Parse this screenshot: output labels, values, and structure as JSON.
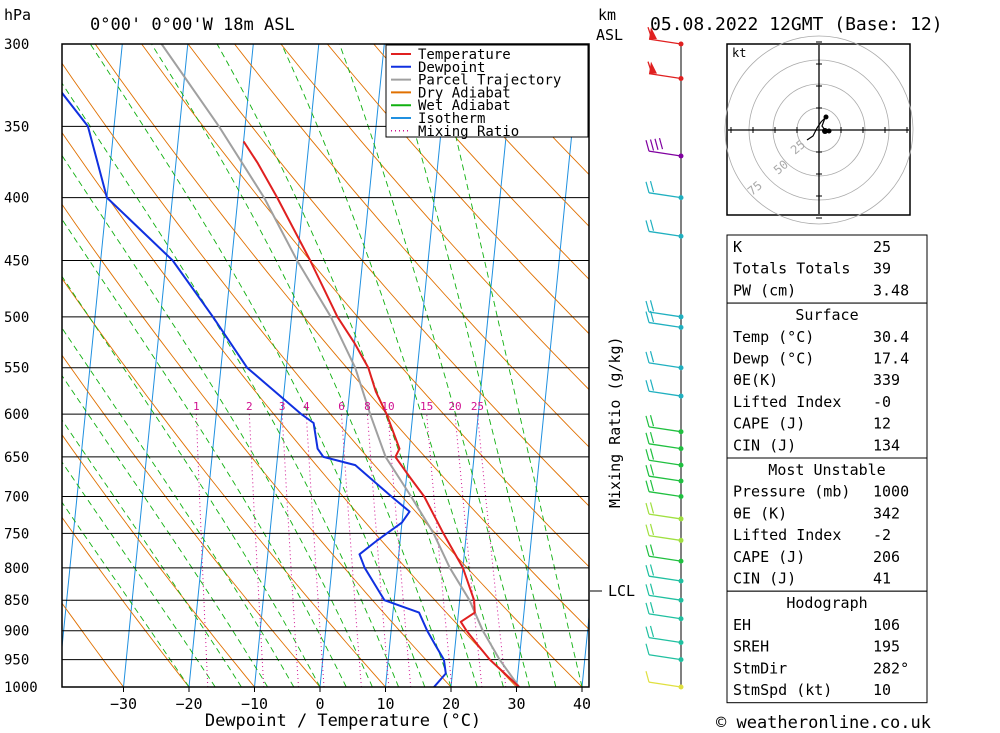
{
  "header": {
    "left_unit": "hPa",
    "location": "0°00' 0°00'W 18m ASL",
    "right_unit_top": "km",
    "right_unit_bottom": "ASL",
    "datetime": "05.08.2022 12GMT (Base: 12)"
  },
  "chart_data": {
    "type": "line",
    "subtype": "skew-t log-p",
    "xlabel": "Dewpoint / Temperature (°C)",
    "ylabel": "",
    "x_ticks": [
      -30,
      -20,
      -10,
      0,
      10,
      20,
      30,
      40
    ],
    "pressure_levels": [
      300,
      350,
      400,
      450,
      500,
      550,
      600,
      650,
      700,
      750,
      800,
      850,
      900,
      950,
      1000
    ],
    "mixing_ratio_label": "Mixing Ratio (g/kg)",
    "mixing_ratio_values": [
      "1",
      "2",
      "3",
      "4",
      "6",
      "8",
      "10",
      "15",
      "20",
      "25"
    ],
    "lcl_label": "LCL",
    "lcl_pressure": 840,
    "legend": [
      {
        "name": "Temperature",
        "color": "#e02020",
        "style": "solid"
      },
      {
        "name": "Dewpoint",
        "color": "#1030e0",
        "style": "solid"
      },
      {
        "name": "Parcel Trajectory",
        "color": "#a0a0a0",
        "style": "solid"
      },
      {
        "name": "Dry Adiabat",
        "color": "#e07000",
        "style": "solid"
      },
      {
        "name": "Wet Adiabat",
        "color": "#10b010",
        "style": "solid"
      },
      {
        "name": "Isotherm",
        "color": "#2090e0",
        "style": "solid"
      },
      {
        "name": "Mixing Ratio",
        "color": "#d01090",
        "style": "dotted"
      }
    ],
    "series": [
      {
        "name": "Temperature",
        "points": [
          [
            1000,
            30.4
          ],
          [
            975,
            28
          ],
          [
            950,
            25.5
          ],
          [
            925,
            23.5
          ],
          [
            900,
            21.5
          ],
          [
            885,
            20.5
          ],
          [
            870,
            22.5
          ],
          [
            850,
            22.2
          ],
          [
            800,
            20
          ],
          [
            750,
            16.5
          ],
          [
            700,
            13
          ],
          [
            675,
            10.5
          ],
          [
            650,
            8
          ],
          [
            640,
            8.5
          ],
          [
            600,
            6
          ],
          [
            575,
            4
          ],
          [
            550,
            2.5
          ],
          [
            525,
            0
          ],
          [
            500,
            -3
          ],
          [
            450,
            -8
          ],
          [
            400,
            -14
          ],
          [
            375,
            -17.5
          ],
          [
            360,
            -20
          ]
        ]
      },
      {
        "name": "Dewpoint",
        "points": [
          [
            1000,
            17.4
          ],
          [
            975,
            19
          ],
          [
            950,
            18.5
          ],
          [
            925,
            17
          ],
          [
            900,
            15.5
          ],
          [
            870,
            14
          ],
          [
            850,
            8.5
          ],
          [
            800,
            5
          ],
          [
            780,
            4
          ],
          [
            760,
            6.5
          ],
          [
            735,
            10
          ],
          [
            720,
            11
          ],
          [
            700,
            8
          ],
          [
            660,
            2
          ],
          [
            650,
            -3
          ],
          [
            640,
            -4
          ],
          [
            610,
            -5
          ],
          [
            600,
            -7
          ],
          [
            550,
            -16
          ],
          [
            500,
            -22
          ],
          [
            450,
            -29
          ],
          [
            400,
            -40
          ],
          [
            350,
            -44
          ],
          [
            300,
            -55
          ]
        ]
      },
      {
        "name": "Parcel Trajectory",
        "points": [
          [
            1000,
            30.4
          ],
          [
            950,
            27
          ],
          [
            900,
            24
          ],
          [
            850,
            21.5
          ],
          [
            800,
            18
          ],
          [
            750,
            15
          ],
          [
            700,
            11
          ],
          [
            650,
            6.5
          ],
          [
            600,
            3.5
          ],
          [
            550,
            0.5
          ],
          [
            500,
            -4
          ],
          [
            450,
            -10
          ],
          [
            400,
            -16
          ],
          [
            350,
            -24
          ],
          [
            300,
            -34
          ]
        ]
      }
    ],
    "wind_barbs": [
      {
        "p": 300,
        "color": "#e02020",
        "flags": 1
      },
      {
        "p": 320,
        "color": "#e02020",
        "flags": 1
      },
      {
        "p": 370,
        "color": "#8000a0",
        "barbs": 4
      },
      {
        "p": 400,
        "color": "#20b0c0",
        "barbs": 2
      },
      {
        "p": 430,
        "color": "#20b0c0",
        "barbs": 2
      },
      {
        "p": 500,
        "color": "#20b0c0",
        "barbs": 2
      },
      {
        "p": 510,
        "color": "#20b0c0",
        "barbs": 2
      },
      {
        "p": 550,
        "color": "#20b0c0",
        "barbs": 2
      },
      {
        "p": 580,
        "color": "#20b0c0",
        "barbs": 2
      },
      {
        "p": 620,
        "color": "#20c040",
        "barbs": 2
      },
      {
        "p": 640,
        "color": "#20c040",
        "barbs": 2
      },
      {
        "p": 660,
        "color": "#20c040",
        "barbs": 2
      },
      {
        "p": 680,
        "color": "#20c040",
        "barbs": 2
      },
      {
        "p": 700,
        "color": "#20c040",
        "barbs": 2
      },
      {
        "p": 730,
        "color": "#a0e040",
        "barbs": 2
      },
      {
        "p": 760,
        "color": "#a0e040",
        "barbs": 2
      },
      {
        "p": 790,
        "color": "#20c040",
        "barbs": 2
      },
      {
        "p": 820,
        "color": "#20c0a0",
        "barbs": 2
      },
      {
        "p": 850,
        "color": "#20c0a0",
        "barbs": 2
      },
      {
        "p": 880,
        "color": "#20c0a0",
        "barbs": 2
      },
      {
        "p": 920,
        "color": "#20c0a0",
        "barbs": 2
      },
      {
        "p": 950,
        "color": "#20c0a0",
        "barbs": 1
      },
      {
        "p": 1000,
        "color": "#e0e040",
        "barbs": 1
      }
    ],
    "hodograph": {
      "unit": "kt",
      "rings": [
        "25",
        "50",
        "75"
      ]
    }
  },
  "indices": {
    "top": [
      {
        "label": "K",
        "value": "25"
      },
      {
        "label": "Totals Totals",
        "value": "39"
      },
      {
        "label": "PW (cm)",
        "value": "3.48"
      }
    ],
    "surface": {
      "title": "Surface",
      "rows": [
        {
          "label": "Temp (°C)",
          "value": "30.4"
        },
        {
          "label": "Dewp (°C)",
          "value": "17.4"
        },
        {
          "label": "θE(K)",
          "value": "339"
        },
        {
          "label": "Lifted Index",
          "value": "-0"
        },
        {
          "label": "CAPE (J)",
          "value": "12"
        },
        {
          "label": "CIN (J)",
          "value": "134"
        }
      ]
    },
    "most_unstable": {
      "title": "Most Unstable",
      "rows": [
        {
          "label": "Pressure (mb)",
          "value": "1000"
        },
        {
          "label": "θE (K)",
          "value": "342"
        },
        {
          "label": "Lifted Index",
          "value": "-2"
        },
        {
          "label": "CAPE (J)",
          "value": "206"
        },
        {
          "label": "CIN (J)",
          "value": "41"
        }
      ]
    },
    "hodograph_params": {
      "title": "Hodograph",
      "rows": [
        {
          "label": "EH",
          "value": "106"
        },
        {
          "label": "SREH",
          "value": "195"
        },
        {
          "label": "StmDir",
          "value": "282°"
        },
        {
          "label": "StmSpd (kt)",
          "value": "10"
        }
      ]
    }
  },
  "footer": {
    "copyright": "© weatheronline.co.uk"
  }
}
